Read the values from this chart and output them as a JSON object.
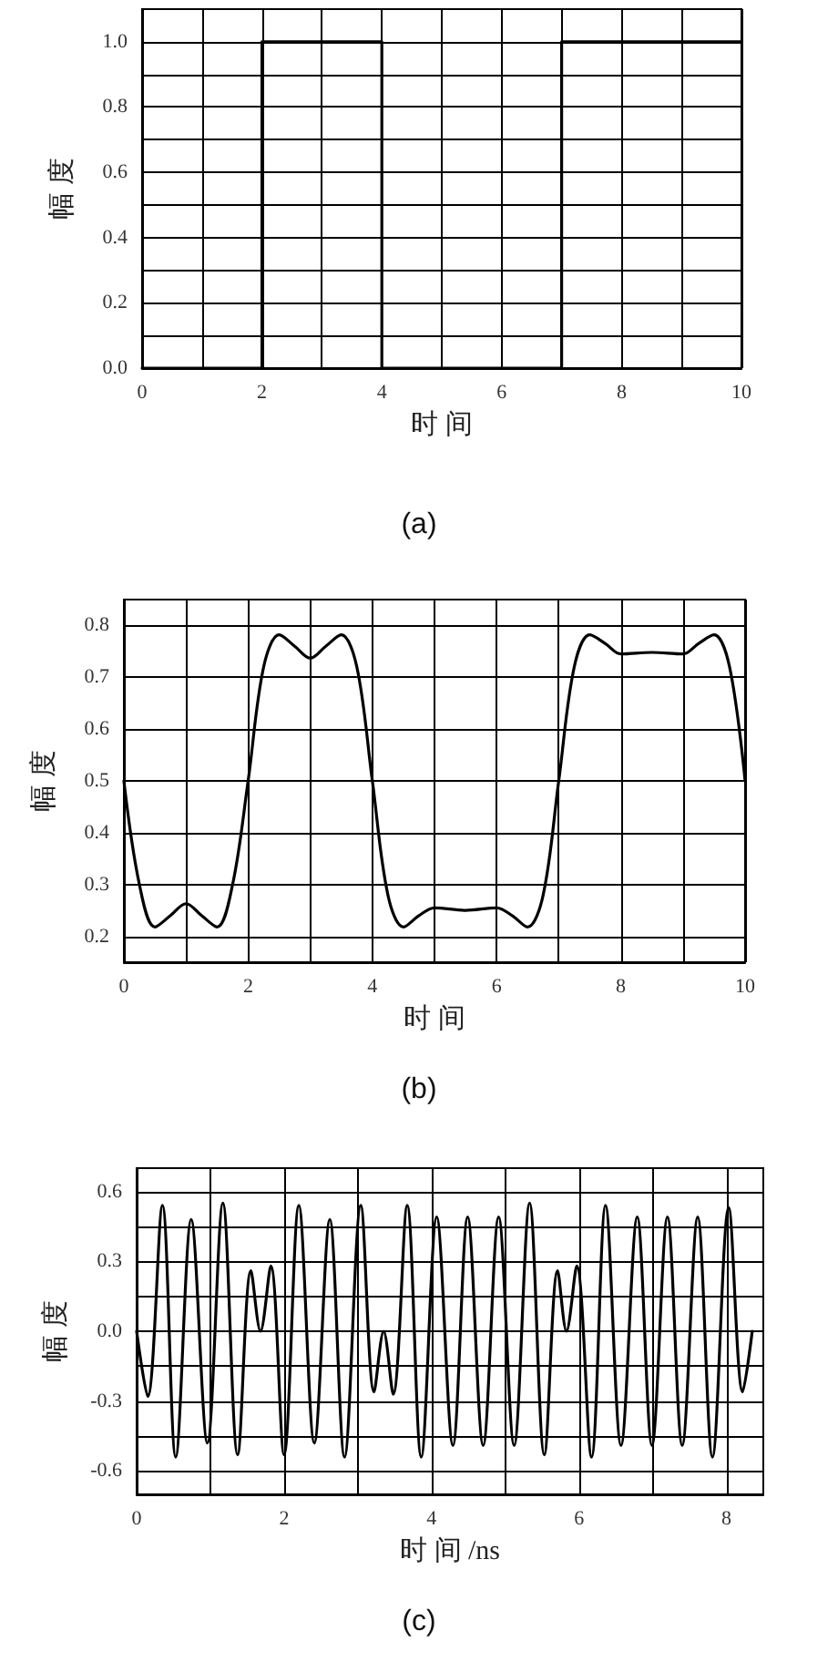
{
  "chart_data": [
    {
      "type": "step",
      "xlabel": "时 间",
      "ylabel": "幅 度",
      "annotations": [
        "(a)"
      ],
      "grid": true,
      "marker": "none",
      "line_style": "solid",
      "x": [
        0,
        2,
        4,
        7,
        10
      ],
      "series": [
        {
          "color": "#000000",
          "values": [
            0,
            1,
            0,
            1,
            1
          ]
        }
      ],
      "xlim": [
        0,
        10
      ],
      "xticks": [
        0,
        {
          "value": 1,
          "label": null
        },
        2,
        {
          "value": 3,
          "label": null
        },
        4,
        {
          "value": 5,
          "label": null
        },
        6,
        {
          "value": 7,
          "label": null
        },
        8,
        {
          "value": 9,
          "label": null
        },
        10
      ],
      "ylim": [
        0,
        1.1
      ],
      "yticks": [
        {
          "value": 0,
          "label": "0.0"
        },
        {
          "value": 0.1,
          "label": null
        },
        0.2,
        {
          "value": 0.3,
          "label": null
        },
        0.4,
        {
          "value": 0.5,
          "label": null
        },
        0.6,
        {
          "value": 0.7,
          "label": null
        },
        0.8,
        {
          "value": 0.9,
          "label": null
        },
        {
          "value": 1,
          "label": "1.0"
        }
      ]
    },
    {
      "type": "line",
      "xlabel": "时 间",
      "ylabel": "幅 度",
      "annotations": [
        "(b)"
      ],
      "grid": true,
      "marker": "none",
      "line_style": "solid",
      "x": [
        0,
        0.25,
        0.5,
        0.75,
        1,
        1.25,
        1.5,
        1.75,
        2,
        2.25,
        2.5,
        2.75,
        3,
        3.25,
        3.5,
        3.75,
        4,
        4.25,
        4.5,
        4.75,
        5,
        5.5,
        6,
        6.25,
        6.5,
        6.75,
        7,
        7.25,
        7.5,
        7.75,
        8,
        8.5,
        9,
        9.25,
        9.5,
        9.75,
        10
      ],
      "series": [
        {
          "color": "#000000",
          "values": [
            0.5,
            0.3,
            0.218,
            0.24,
            0.263,
            0.24,
            0.218,
            0.3,
            0.5,
            0.72,
            0.782,
            0.76,
            0.737,
            0.76,
            0.782,
            0.72,
            0.5,
            0.28,
            0.218,
            0.24,
            0.255,
            0.25,
            0.255,
            0.24,
            0.218,
            0.28,
            0.5,
            0.72,
            0.782,
            0.765,
            0.745,
            0.748,
            0.745,
            0.765,
            0.782,
            0.72,
            0.5
          ]
        }
      ],
      "xlim": [
        0,
        10
      ],
      "xticks": [
        0,
        {
          "value": 1,
          "label": null
        },
        2,
        {
          "value": 3,
          "label": null
        },
        4,
        {
          "value": 5,
          "label": null
        },
        6,
        {
          "value": 7,
          "label": null
        },
        8,
        {
          "value": 9,
          "label": null
        },
        10
      ],
      "ylim": [
        0.15,
        0.85
      ],
      "yticks": [
        0.2,
        0.3,
        0.4,
        0.5,
        0.6,
        0.7,
        0.8
      ]
    },
    {
      "type": "line",
      "xlabel": "时 间 /ns",
      "ylabel": "幅 度",
      "annotations": [
        "(c)"
      ],
      "grid": true,
      "marker": "none",
      "line_style": "solid",
      "x": [
        0,
        0.15,
        0.35,
        0.53,
        0.74,
        0.96,
        1.17,
        1.37,
        1.55,
        1.68,
        1.82,
        2.0,
        2.2,
        2.41,
        2.62,
        2.82,
        3.04,
        3.22,
        3.35,
        3.48,
        3.67,
        3.86,
        4.07,
        4.29,
        4.49,
        4.7,
        4.91,
        5.12,
        5.33,
        5.53,
        5.71,
        5.83,
        5.97,
        6.17,
        6.36,
        6.57,
        6.79,
        6.99,
        7.2,
        7.4,
        7.61,
        7.81,
        8.03,
        8.22,
        8.35
      ],
      "series": [
        {
          "color": "#000000",
          "values": [
            0,
            -0.28,
            0.54,
            -0.54,
            0.48,
            -0.48,
            0.55,
            -0.53,
            0.26,
            0,
            0.28,
            -0.53,
            0.54,
            -0.48,
            0.48,
            -0.54,
            0.54,
            -0.26,
            0,
            -0.27,
            0.54,
            -0.54,
            0.49,
            -0.49,
            0.49,
            -0.49,
            0.49,
            -0.49,
            0.55,
            -0.53,
            0.26,
            0,
            0.28,
            -0.54,
            0.54,
            -0.49,
            0.49,
            -0.49,
            0.49,
            -0.49,
            0.49,
            -0.54,
            0.53,
            -0.26,
            0
          ]
        }
      ],
      "xlim": [
        0,
        8.5
      ],
      "xticks": [
        0,
        {
          "value": 1,
          "label": null
        },
        2,
        {
          "value": 3,
          "label": null
        },
        4,
        {
          "value": 5,
          "label": null
        },
        6,
        {
          "value": 7,
          "label": null
        },
        8
      ],
      "ylim": [
        -0.7,
        0.7
      ],
      "yticks": [
        {
          "value": -0.6,
          "label": "-0.6"
        },
        {
          "value": -0.45,
          "label": null
        },
        {
          "value": -0.3,
          "label": "-0.3"
        },
        {
          "value": -0.15,
          "label": null
        },
        {
          "value": 0,
          "label": "0.0"
        },
        {
          "value": 0.15,
          "label": null
        },
        0.3,
        {
          "value": 0.45,
          "label": null
        },
        0.6
      ]
    }
  ]
}
